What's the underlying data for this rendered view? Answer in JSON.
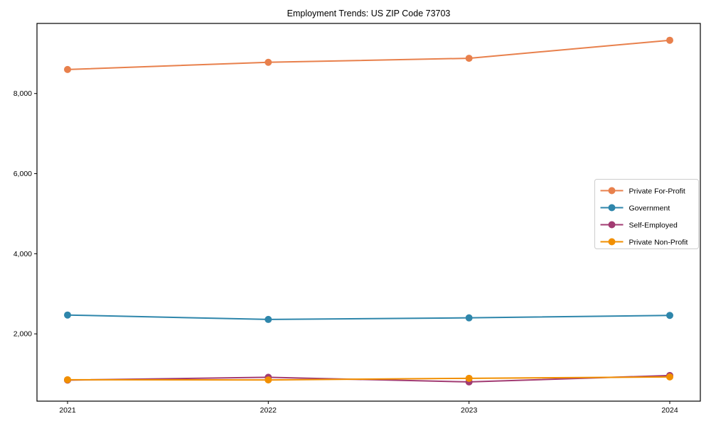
{
  "page": {
    "background": "#ffffff",
    "axis_color": "#000000",
    "legend_border_color": "#cccccc",
    "legend_background": "#ffffff"
  },
  "chart_data": {
    "type": "line",
    "title": "Employment Trends: US ZIP Code 73703",
    "xlabel": "",
    "ylabel": "",
    "x": [
      2021,
      2022,
      2023,
      2024
    ],
    "x_tick_labels": [
      "2021",
      "2022",
      "2023",
      "2024"
    ],
    "y_ticks": [
      2000,
      4000,
      6000,
      8000
    ],
    "y_tick_labels": [
      "2,000",
      "4,000",
      "6,000",
      "8,000"
    ],
    "ylim": [
      320,
      9750
    ],
    "grid": false,
    "legend_position": "center-right",
    "marker": "circle",
    "series": [
      {
        "name": "Private For-Profit",
        "color": "#E8804C",
        "values": [
          8600,
          8780,
          8880,
          9330
        ]
      },
      {
        "name": "Government",
        "color": "#2E86AB",
        "values": [
          2470,
          2360,
          2400,
          2460
        ]
      },
      {
        "name": "Self-Employed",
        "color": "#A23B72",
        "values": [
          845,
          915,
          800,
          960
        ]
      },
      {
        "name": "Private Non-Profit",
        "color": "#F18F01",
        "values": [
          855,
          850,
          890,
          925
        ]
      }
    ]
  }
}
